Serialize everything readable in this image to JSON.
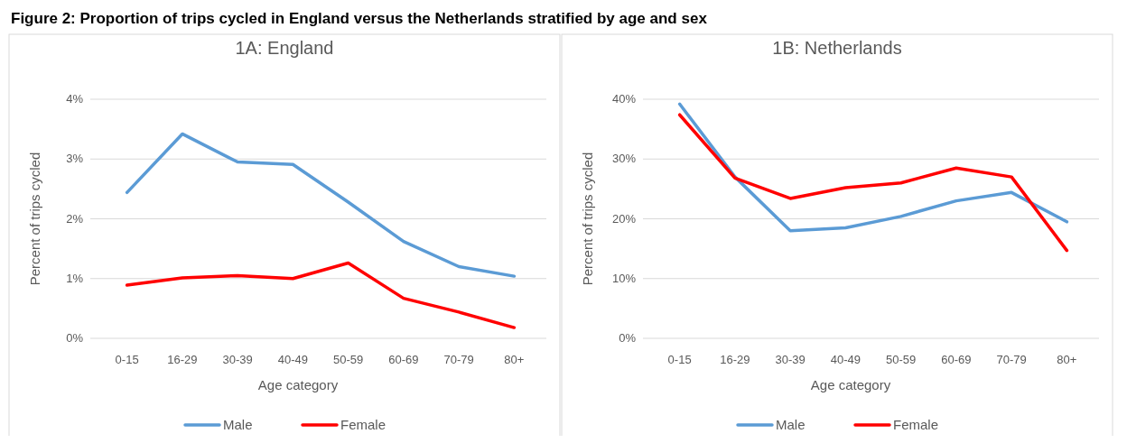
{
  "chart_data": [
    {
      "type": "line",
      "title": "1A: England",
      "annotations": [
        "Figure 2: Proportion of trips cycled in England versus the Netherlands stratified by age and sex"
      ],
      "xlabel": "Age category",
      "ylabel": "Percent of trips cycled",
      "categories": [
        "0-15",
        "16-29",
        "30-39",
        "40-49",
        "50-59",
        "60-69",
        "70-79",
        "80+"
      ],
      "series": [
        {
          "name": "Male",
          "color": "#5b9bd5",
          "values": [
            2.44,
            3.42,
            2.95,
            2.91,
            2.28,
            1.62,
            1.2,
            1.04
          ]
        },
        {
          "name": "Female",
          "color": "#ff0000",
          "values": [
            0.89,
            1.01,
            1.05,
            1.0,
            1.26,
            0.67,
            0.44,
            0.18
          ]
        }
      ],
      "ylim": [
        0,
        4
      ],
      "yticks": [
        {
          "value": 0,
          "label": "0%"
        },
        {
          "value": 1,
          "label": "1%"
        },
        {
          "value": 2,
          "label": "2%"
        },
        {
          "value": 3,
          "label": "3%"
        },
        {
          "value": 4,
          "label": "4%"
        }
      ],
      "grid": "y",
      "legend": "bottom"
    },
    {
      "type": "line",
      "title": "1B: Netherlands",
      "xlabel": "Age category",
      "ylabel": "Percent of trips cycled",
      "categories": [
        "0-15",
        "16-29",
        "30-39",
        "40-49",
        "50-59",
        "60-69",
        "70-79",
        "80+"
      ],
      "series": [
        {
          "name": "Male",
          "color": "#5b9bd5",
          "values": [
            39.2,
            27.0,
            18.0,
            18.5,
            20.4,
            23.0,
            24.4,
            19.5
          ]
        },
        {
          "name": "Female",
          "color": "#ff0000",
          "values": [
            37.4,
            26.8,
            23.4,
            25.2,
            26.0,
            28.5,
            27.0,
            14.7
          ]
        }
      ],
      "ylim": [
        0,
        40
      ],
      "yticks": [
        {
          "value": 0,
          "label": "0%"
        },
        {
          "value": 10,
          "label": "10%"
        },
        {
          "value": 20,
          "label": "20%"
        },
        {
          "value": 30,
          "label": "30%"
        },
        {
          "value": 40,
          "label": "40%"
        }
      ],
      "grid": "y",
      "legend": "bottom"
    }
  ]
}
